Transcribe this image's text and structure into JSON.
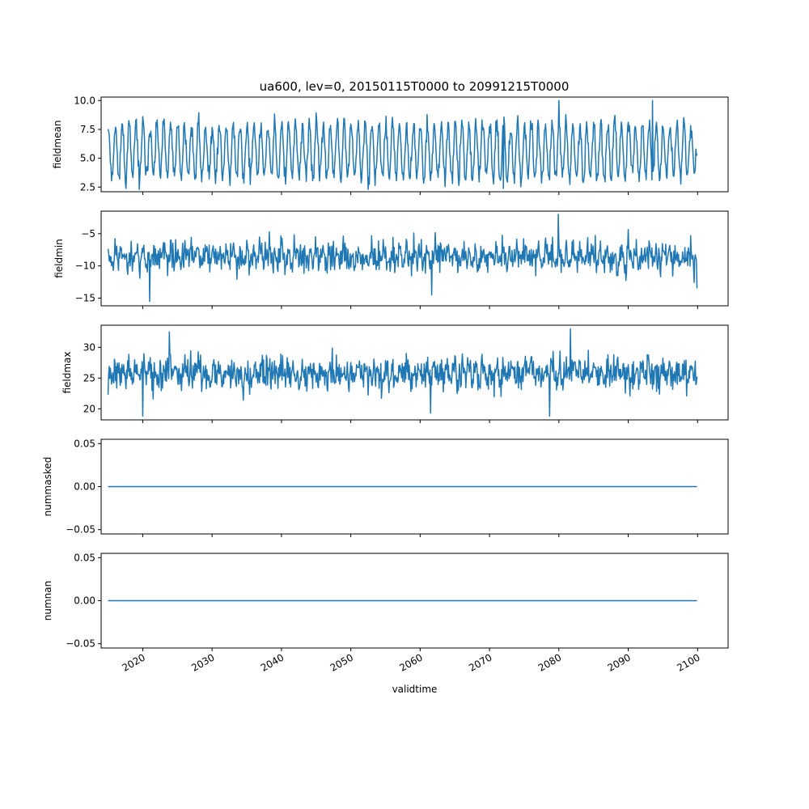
{
  "title": "ua600, lev=0, 20150115T0000 to 20991215T0000",
  "colors": {
    "series": "#1f77b4",
    "axes": "#000000",
    "background": "#ffffff"
  },
  "chart_data": [
    {
      "type": "line",
      "ylabel": "fieldmean",
      "xlabel": "",
      "xlim": [
        2014.0,
        2104.4
      ],
      "ylim": [
        2.1,
        10.3
      ],
      "yticks": [
        "2.5",
        "5.0",
        "7.5",
        "10.0"
      ],
      "ytick_values": [
        2.5,
        5.0,
        7.5,
        10.0
      ],
      "xtick_labels": [
        "2020",
        "2030",
        "2040",
        "2050",
        "2060",
        "2070",
        "2080",
        "2090",
        "2100"
      ],
      "xtick_values": [
        2020,
        2030,
        2040,
        2050,
        2060,
        2070,
        2080,
        2090,
        2100
      ],
      "xtick_labels_visible": false,
      "series": [
        {
          "x_start": "2015-01",
          "x_end": "2099-12",
          "frequency": "monthly",
          "seasonal_mean": 5.6,
          "seasonal_amplitude": 2.3,
          "noise": 0.6,
          "min": 2.3,
          "max": 10.0,
          "seed": 11,
          "extremes": [
            [
              2080.0,
              10.0
            ],
            [
              2093.5,
              10.0
            ],
            [
              2019.5,
              2.3
            ],
            [
              2072.0,
              2.4
            ],
            [
              2100.0,
              5.4
            ]
          ]
        }
      ]
    },
    {
      "type": "line",
      "ylabel": "fieldmin",
      "xlabel": "",
      "xlim": [
        2014.0,
        2104.4
      ],
      "ylim": [
        -16.2,
        -1.5
      ],
      "yticks": [
        "−15",
        "−10",
        "−5"
      ],
      "ytick_values": [
        -15,
        -10,
        -5
      ],
      "xtick_labels": [
        "2020",
        "2030",
        "2040",
        "2050",
        "2060",
        "2070",
        "2080",
        "2090",
        "2100"
      ],
      "xtick_values": [
        2020,
        2030,
        2040,
        2050,
        2060,
        2070,
        2080,
        2090,
        2100
      ],
      "xtick_labels_visible": false,
      "series": [
        {
          "x_start": "2015-01",
          "x_end": "2099-12",
          "frequency": "monthly",
          "seasonal_mean": -8.5,
          "seasonal_amplitude": 0.8,
          "noise": 1.7,
          "min": -15.5,
          "max": -2.0,
          "seed": 23,
          "extremes": [
            [
              2021.0,
              -15.5
            ],
            [
              2061.7,
              -14.5
            ],
            [
              2079.9,
              -2.0
            ],
            [
              2100.0,
              -13.5
            ]
          ]
        }
      ]
    },
    {
      "type": "line",
      "ylabel": "fieldmax",
      "xlabel": "",
      "xlim": [
        2014.0,
        2104.4
      ],
      "ylim": [
        18.2,
        33.6
      ],
      "yticks": [
        "20",
        "25",
        "30"
      ],
      "ytick_values": [
        20,
        25,
        30
      ],
      "xtick_labels": [
        "2020",
        "2030",
        "2040",
        "2050",
        "2060",
        "2070",
        "2080",
        "2090",
        "2100"
      ],
      "xtick_values": [
        2020,
        2030,
        2040,
        2050,
        2060,
        2070,
        2080,
        2090,
        2100
      ],
      "xtick_labels_visible": false,
      "series": [
        {
          "x_start": "2015-01",
          "x_end": "2099-12",
          "frequency": "monthly",
          "seasonal_mean": 25.8,
          "seasonal_amplitude": 0.7,
          "noise": 1.9,
          "min": 18.8,
          "max": 33.0,
          "seed": 37,
          "extremes": [
            [
              2015.0,
              22.3
            ],
            [
              2020.0,
              18.8
            ],
            [
              2023.8,
              32.5
            ],
            [
              2061.5,
              19.3
            ],
            [
              2078.7,
              18.8
            ],
            [
              2081.7,
              33.0
            ]
          ]
        }
      ]
    },
    {
      "type": "line",
      "ylabel": "nummasked",
      "xlabel": "",
      "xlim": [
        2014.0,
        2104.4
      ],
      "ylim": [
        -0.055,
        0.055
      ],
      "yticks": [
        "−0.05",
        "0.00",
        "0.05"
      ],
      "ytick_values": [
        -0.05,
        0.0,
        0.05
      ],
      "xtick_labels": [
        "2020",
        "2030",
        "2040",
        "2050",
        "2060",
        "2070",
        "2080",
        "2090",
        "2100"
      ],
      "xtick_values": [
        2020,
        2030,
        2040,
        2050,
        2060,
        2070,
        2080,
        2090,
        2100
      ],
      "xtick_labels_visible": false,
      "series": [
        {
          "x_start": "2015-01",
          "x_end": "2099-12",
          "frequency": "monthly",
          "constant": 0
        }
      ]
    },
    {
      "type": "line",
      "ylabel": "numnan",
      "xlabel": "validtime",
      "xlim": [
        2014.0,
        2104.4
      ],
      "ylim": [
        -0.055,
        0.055
      ],
      "yticks": [
        "−0.05",
        "0.00",
        "0.05"
      ],
      "ytick_values": [
        -0.05,
        0.0,
        0.05
      ],
      "xtick_labels": [
        "2020",
        "2030",
        "2040",
        "2050",
        "2060",
        "2070",
        "2080",
        "2090",
        "2100"
      ],
      "xtick_values": [
        2020,
        2030,
        2040,
        2050,
        2060,
        2070,
        2080,
        2090,
        2100
      ],
      "xtick_labels_visible": true,
      "series": [
        {
          "x_start": "2015-01",
          "x_end": "2099-12",
          "frequency": "monthly",
          "constant": 0
        }
      ]
    }
  ]
}
